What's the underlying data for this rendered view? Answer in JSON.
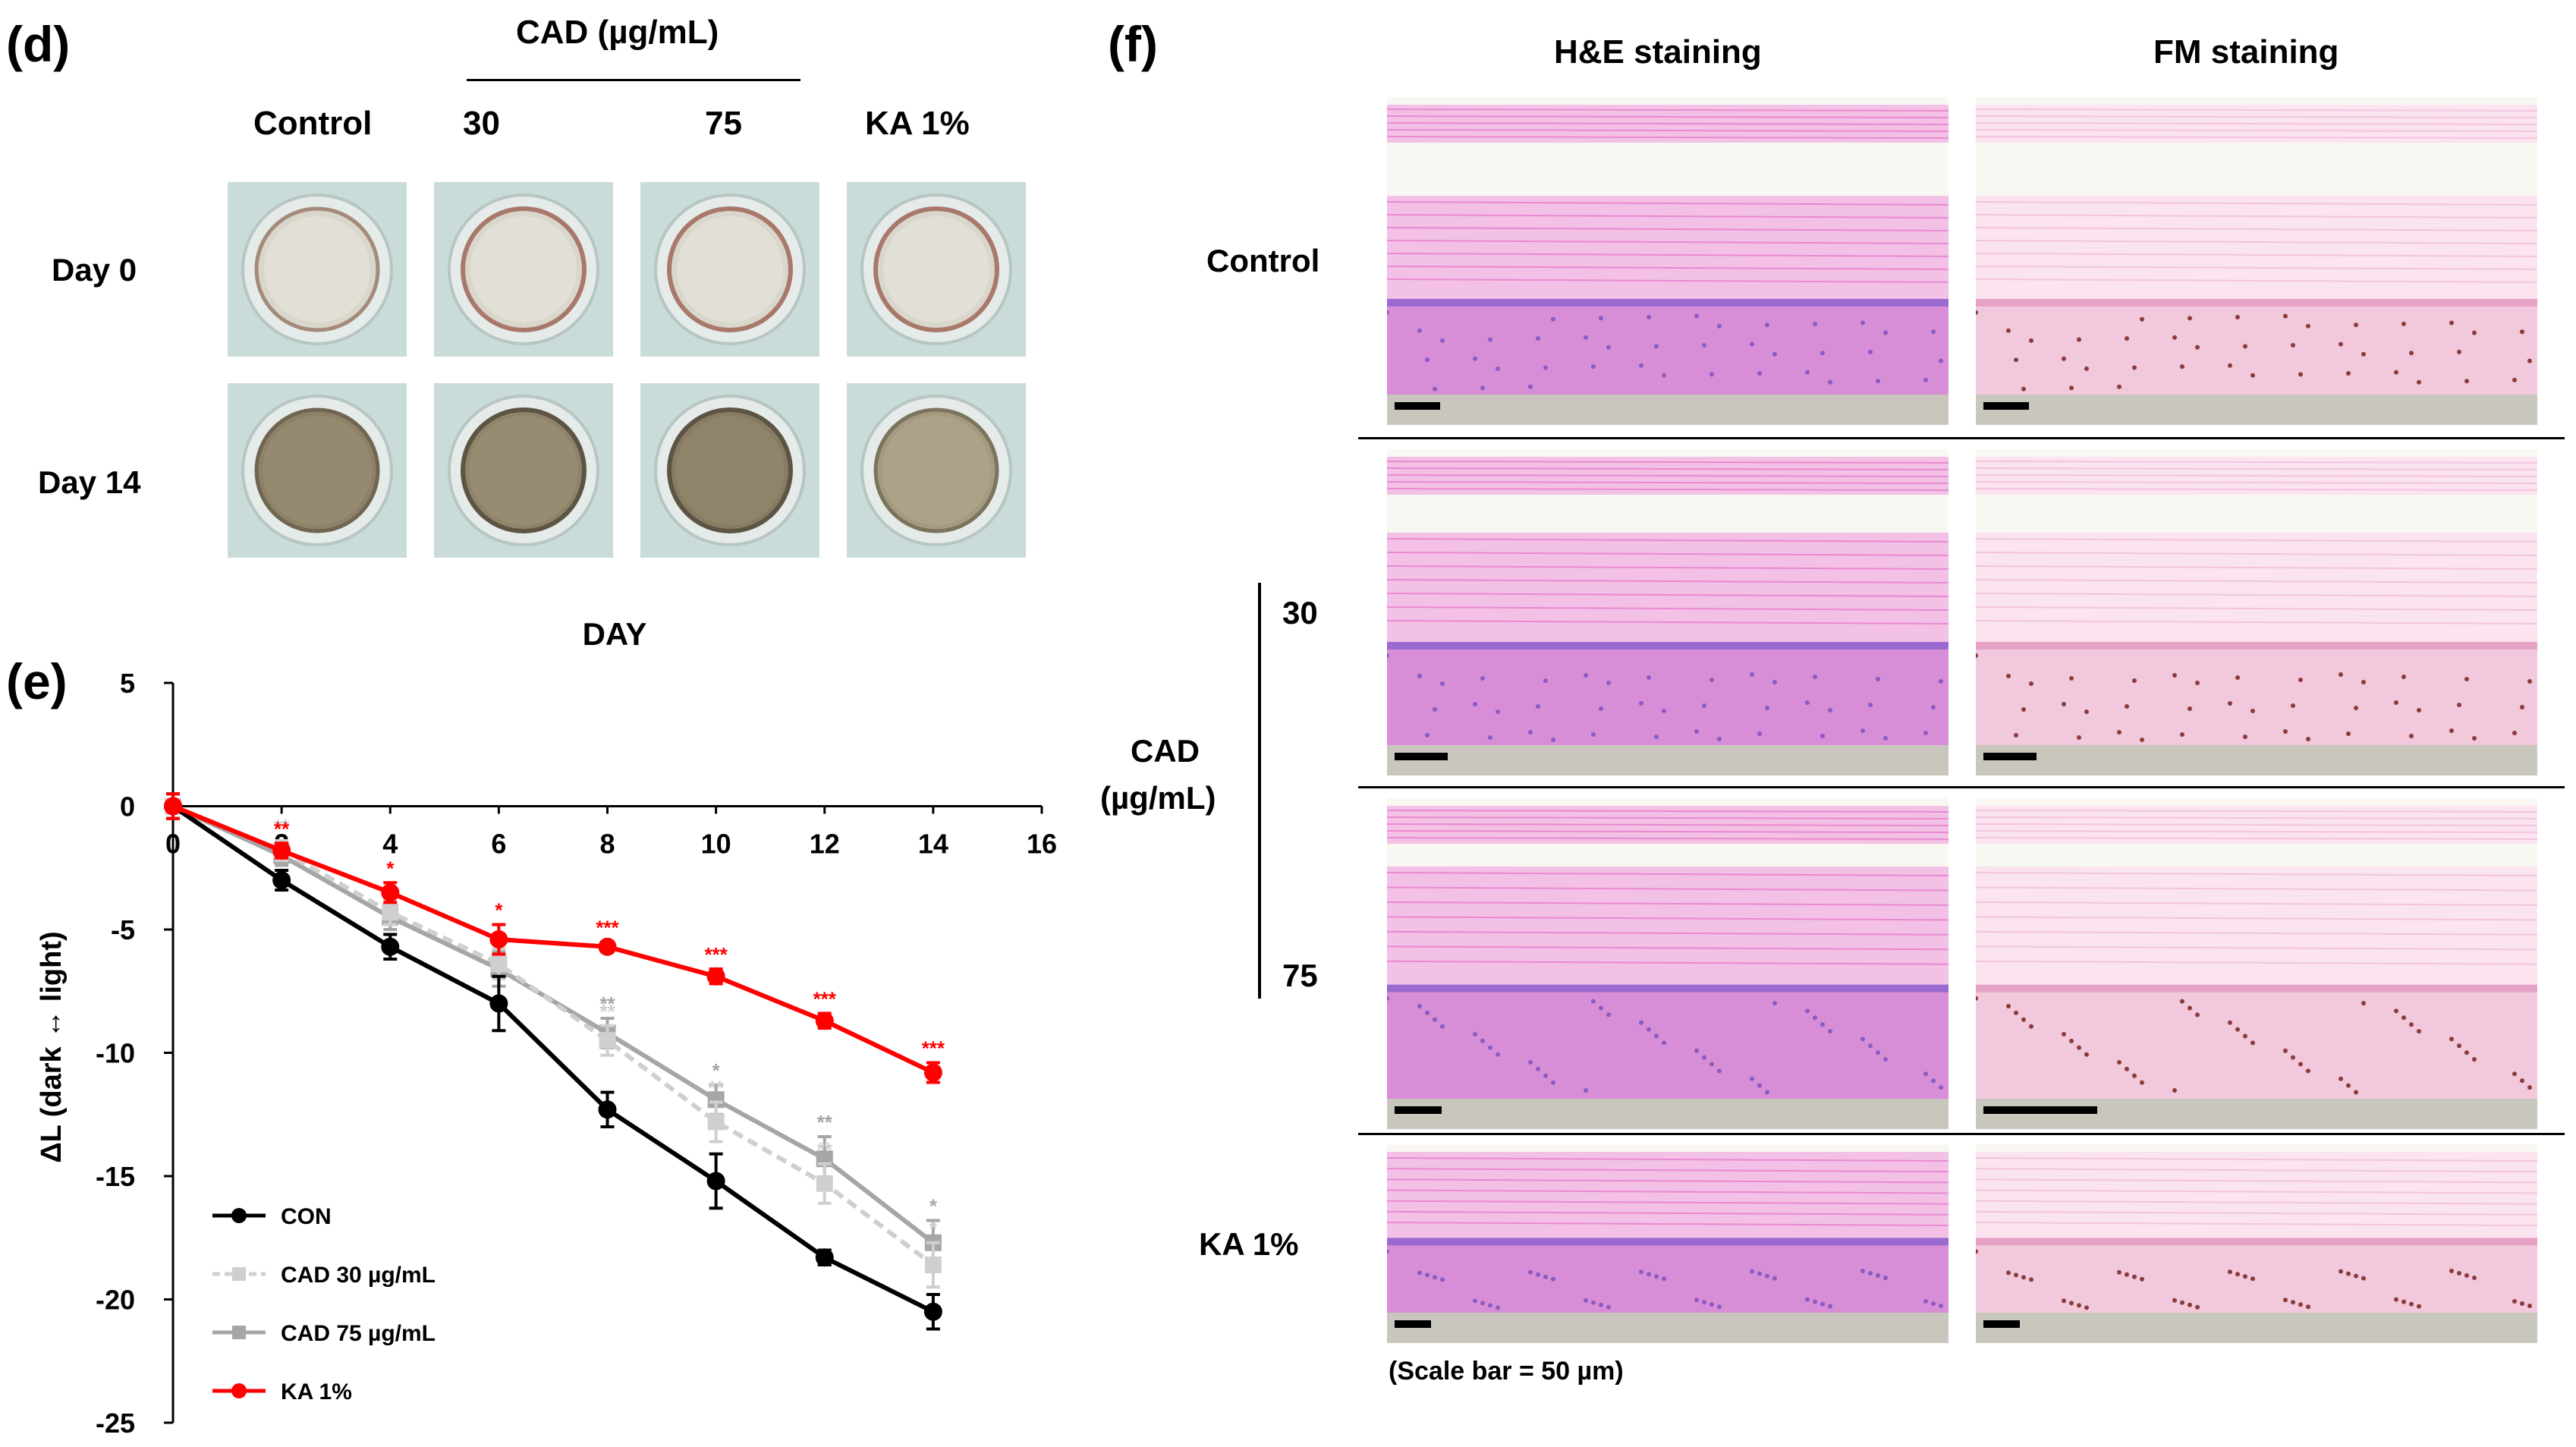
{
  "panel_d": {
    "label": "(d)",
    "group_header": "CAD (µg/mL)",
    "columns": [
      "Control",
      "30",
      "75",
      "KA 1%"
    ],
    "rows": [
      "Day 0",
      "Day 14"
    ]
  },
  "panel_f": {
    "label": "(f)",
    "stain_headers": [
      "H&E staining",
      "FM staining"
    ],
    "row_labels": {
      "control": "Control",
      "c30": "30",
      "cad": "CAD",
      "cad_unit": "(µg/mL)",
      "c75": "75",
      "ka": "KA 1%"
    },
    "scale_note": "(Scale bar = 50 µm)"
  },
  "panel_e": {
    "label": "(e)",
    "legend": [
      "CON",
      "CAD 30 µg/mL",
      "CAD 75 µg/mL",
      "KA 1%"
    ]
  },
  "chart_data": {
    "type": "line",
    "title": "DAY",
    "xlabel": "DAY",
    "ylabel": "ΔL (dark ↔ light)",
    "x": [
      0,
      2,
      4,
      6,
      8,
      10,
      12,
      14
    ],
    "xlim": [
      0,
      16
    ],
    "ylim": [
      -25,
      5
    ],
    "x_ticks": [
      0,
      2,
      4,
      6,
      8,
      10,
      12,
      14,
      16
    ],
    "y_ticks": [
      5,
      0,
      -5,
      -10,
      -15,
      -20,
      -25
    ],
    "series": [
      {
        "name": "CON",
        "color": "#000000",
        "dashed": false,
        "values": [
          0,
          -3.0,
          -5.7,
          -8.0,
          -12.3,
          -15.2,
          -18.3,
          -20.5
        ],
        "errors": [
          0.5,
          0.4,
          0.5,
          1.1,
          0.7,
          1.1,
          0.3,
          0.7
        ],
        "stars": []
      },
      {
        "name": "CAD 30 µg/mL",
        "color": "#cfcfcf",
        "dashed": true,
        "values": [
          0,
          -1.8,
          -4.3,
          -6.4,
          -9.5,
          -12.8,
          -15.3,
          -18.6
        ],
        "errors": [
          0.5,
          0.4,
          0.5,
          0.6,
          0.6,
          0.8,
          0.8,
          0.9
        ],
        "stars": [
          "",
          "**",
          "",
          "",
          "**",
          "**",
          "**",
          "*"
        ]
      },
      {
        "name": "CAD 75 µg/mL",
        "color": "#a6a6a6",
        "dashed": false,
        "values": [
          0,
          -2.0,
          -4.5,
          -6.6,
          -9.2,
          -11.9,
          -14.3,
          -17.7
        ],
        "errors": [
          0.5,
          0.4,
          0.5,
          0.7,
          0.6,
          0.6,
          0.9,
          0.9
        ],
        "stars": [
          "",
          "",
          "",
          "",
          "**",
          "*",
          "**",
          "*"
        ]
      },
      {
        "name": "KA 1%",
        "color": "#ff0000",
        "dashed": false,
        "values": [
          0,
          -1.8,
          -3.5,
          -5.4,
          -5.7,
          -6.9,
          -8.7,
          -10.8
        ],
        "errors": [
          0.5,
          0.3,
          0.4,
          0.6,
          0.2,
          0.3,
          0.3,
          0.4
        ],
        "stars": [
          "",
          "**",
          "*",
          "*",
          "***",
          "***",
          "***",
          "***"
        ]
      }
    ]
  }
}
